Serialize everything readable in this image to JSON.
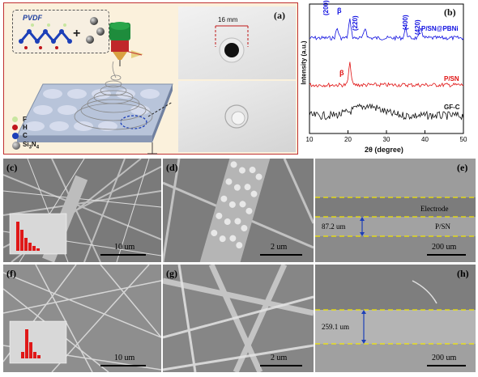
{
  "panel_a": {
    "letter": "(a)",
    "polymer_label": "PVDF",
    "plus": "+",
    "dimension_label": "16 mm",
    "legend": [
      {
        "key": "F",
        "color": "#c8e6a0"
      },
      {
        "key": "H",
        "color": "#c0161b"
      },
      {
        "key": "C",
        "color": "#1c3fb8"
      }
    ],
    "legend_si3n4_main": "Si",
    "legend_si3n4_sub1": "3",
    "legend_si3n4_n": "N",
    "legend_si3n4_sub2": "4"
  },
  "panel_b": {
    "letter": "(b)",
    "ylabel": "Intensity (a.u.)",
    "xlabel": "2θ (degree)",
    "peak_labels": [
      "(200)",
      "β",
      "(220)",
      "(400)",
      "(420)"
    ],
    "beta_red": "β",
    "series_labels": [
      "P/SN@PBNi",
      "P/SN",
      "GF-C"
    ],
    "series_colors": [
      "#1010e0",
      "#e01010",
      "#111111"
    ]
  },
  "chart_data": {
    "type": "line",
    "xlabel": "2θ (degree)",
    "ylabel": "Intensity (a.u.)",
    "xlim": [
      10,
      50
    ],
    "xticks": [
      10,
      20,
      30,
      40,
      50
    ],
    "series": [
      {
        "name": "P/SN@PBNi",
        "peaks_at": [
          17.2,
          20.5,
          24.5,
          35.0,
          39.0
        ]
      },
      {
        "name": "P/SN",
        "peaks_at": [
          20.5
        ]
      },
      {
        "name": "GF-C",
        "peaks_at": [
          25.0
        ]
      }
    ]
  },
  "panel_c": {
    "letter": "(c)",
    "scale": "10 um"
  },
  "panel_d": {
    "letter": "(d)",
    "scale": "2 um"
  },
  "panel_e": {
    "letter": "(e)",
    "scale": "200 um",
    "thickness": "87.2 um",
    "label_top": "Electrode",
    "label_bottom": "P/SN"
  },
  "panel_f": {
    "letter": "(f)",
    "scale": "10 um"
  },
  "panel_g": {
    "letter": "(g)",
    "scale": "2 um"
  },
  "panel_h": {
    "letter": "(h)",
    "scale": "200 um",
    "thickness": "259.1 um"
  }
}
